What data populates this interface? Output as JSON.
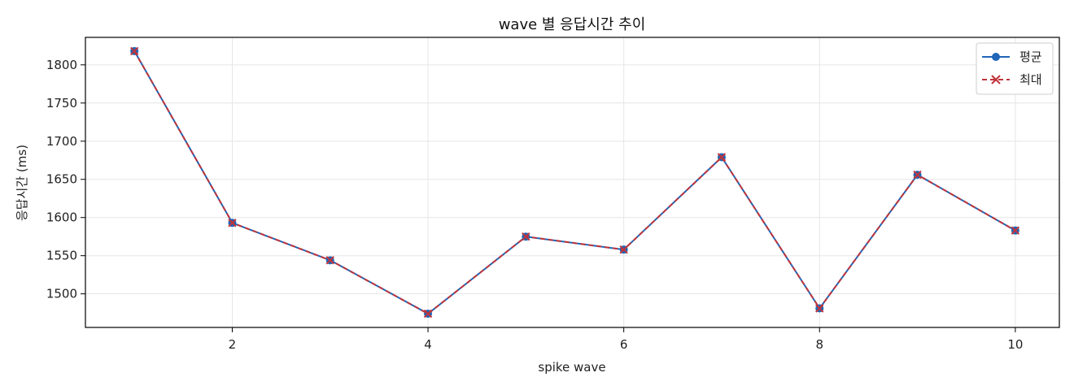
{
  "chart_data": {
    "type": "line",
    "title": "wave 별 응답시간 추이",
    "xlabel": "spike wave",
    "ylabel": "응답시간 (ms)",
    "x": [
      1,
      2,
      3,
      4,
      5,
      6,
      7,
      8,
      9,
      10
    ],
    "xlim": [
      0.5,
      10.45
    ],
    "ylim": [
      1456,
      1836
    ],
    "xticks": [
      2,
      4,
      6,
      8,
      10
    ],
    "yticks": [
      1500,
      1550,
      1600,
      1650,
      1700,
      1750,
      1800
    ],
    "grid": true,
    "legend_position": "top-right",
    "series": [
      {
        "name": "평균",
        "values": [
          1818,
          1593,
          1544,
          1474,
          1575,
          1558,
          1679,
          1481,
          1656,
          1583
        ],
        "color": "#1f66b8",
        "marker": "circle",
        "line_style": "solid"
      },
      {
        "name": "최대",
        "values": [
          1818,
          1593,
          1544,
          1474,
          1575,
          1558,
          1679,
          1481,
          1656,
          1583
        ],
        "color": "#c0343a",
        "marker": "x",
        "line_style": "dashed"
      }
    ]
  }
}
